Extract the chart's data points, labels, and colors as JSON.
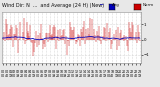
{
  "title_line1": "Wind Dir: N   ...  and Average (24 H) (New)",
  "bg_color": "#e8e8e8",
  "plot_bg_color": "#ffffff",
  "bar_color": "#cc0000",
  "line_color": "#0000bb",
  "legend_bar_color": "#cc0000",
  "legend_line_color": "#0000bb",
  "title_fontsize": 3.5,
  "tick_fontsize": 2.8,
  "n_points": 144,
  "y_min": -1.5,
  "y_max": 1.8,
  "y_ticks": [
    -1.0,
    0.0,
    1.0
  ],
  "grid_color": "#bbbbbb",
  "seed": 12345
}
